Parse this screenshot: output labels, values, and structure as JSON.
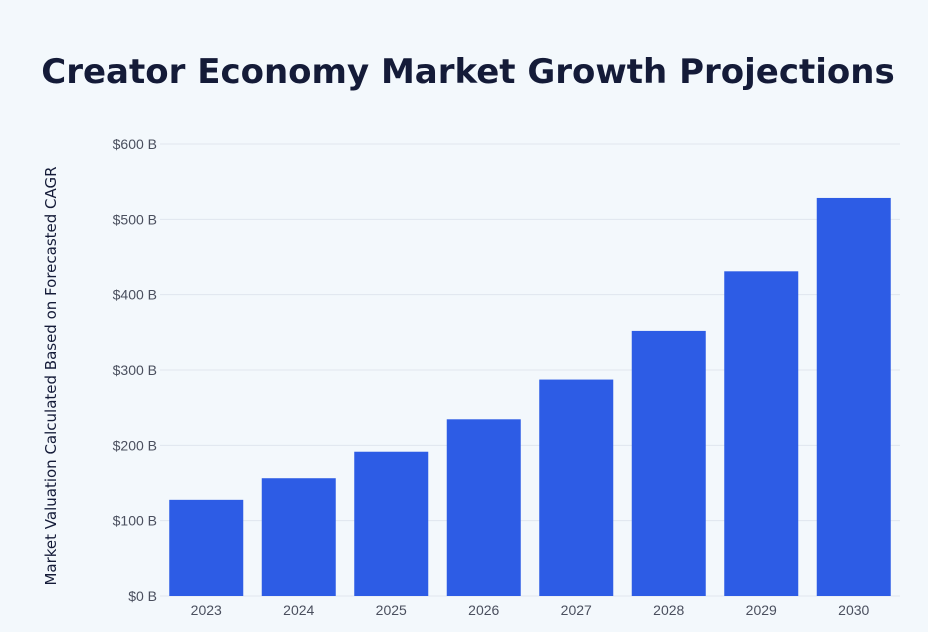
{
  "colors": {
    "background": "#f3f8fc",
    "bar": "#2d5ce5",
    "title": "#141b38",
    "tick": "#4a4f5e",
    "grid": "#e0e6ee"
  },
  "chart_data": {
    "type": "bar",
    "title": "Creator Economy Market Growth Projections",
    "xlabel": "",
    "ylabel": "Market Valuation Calculated Based on Forecasted CAGR",
    "categories": [
      "2023",
      "2024",
      "2025",
      "2026",
      "2027",
      "2028",
      "2029",
      "2030"
    ],
    "series": [
      {
        "values": [
          127.65,
          156.35,
          191.5,
          234.56,
          287.3,
          351.89,
          431.01,
          528.39
        ]
      }
    ],
    "ylim": [
      0,
      600
    ],
    "y_ticks": [
      0,
      100,
      200,
      300,
      400,
      500,
      600
    ],
    "y_tick_labels": [
      "$0 B",
      "$100 B",
      "$200 B",
      "$300 B",
      "$400 B",
      "$500 B",
      "$600 B"
    ],
    "grid": true,
    "legend": "none"
  }
}
